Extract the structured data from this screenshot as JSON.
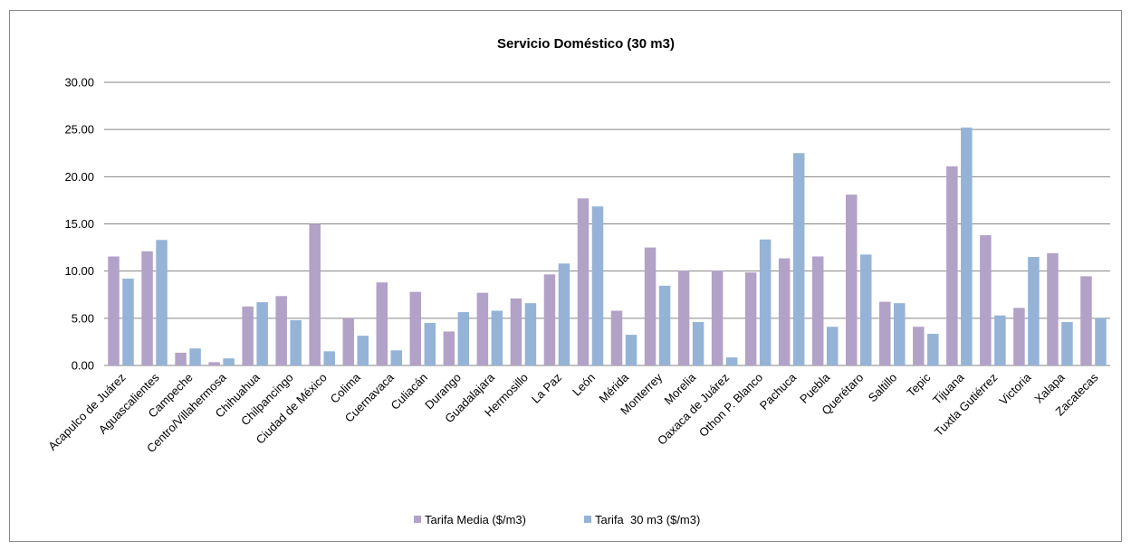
{
  "chart_data": {
    "type": "bar",
    "title": "Servicio Doméstico (30 m3)",
    "xlabel": "",
    "ylabel": "",
    "ylim": [
      0,
      30
    ],
    "yticks": [
      "0.00",
      "5.00",
      "10.00",
      "15.00",
      "20.00",
      "25.00",
      "30.00"
    ],
    "grid": true,
    "legend_position": "bottom",
    "categories": [
      "Acapulco de Juárez",
      "Aguascalientes",
      "Campeche",
      "Centro/Villahermosa",
      "Chihuahua",
      "Chilpancingo",
      "Ciudad de México",
      "Colima",
      "Cuernavaca",
      "Culiacán",
      "Durango",
      "Guadalajara",
      "Hermosillo",
      "La Paz",
      "León",
      "Mérida",
      "Monterrey",
      "Morelia",
      "Oaxaca de Juárez",
      "Othon P. Blanco",
      "Pachuca",
      "Puebla",
      "Querétaro",
      "Saltillo",
      "Tepic",
      "Tijuana",
      "Tuxtla Gutiérrez",
      "Victoria",
      "Xalapa",
      "Zacatecas"
    ],
    "series": [
      {
        "name": "Tarifa Media ($/m3)",
        "color": "#b3a2c7",
        "values": [
          11.55,
          12.1,
          1.35,
          0.35,
          6.25,
          7.35,
          15.0,
          5.0,
          8.8,
          7.8,
          3.6,
          7.7,
          7.1,
          9.65,
          17.7,
          5.8,
          12.5,
          10.05,
          10.05,
          9.85,
          11.35,
          11.55,
          18.1,
          6.75,
          4.1,
          21.1,
          13.8,
          6.1,
          11.9,
          9.45
        ]
      },
      {
        "name": "Tarifa  30 m3 ($/m3)",
        "color": "#95b3d7",
        "values": [
          9.2,
          13.3,
          1.8,
          0.75,
          6.7,
          4.8,
          1.5,
          3.15,
          1.6,
          4.5,
          5.65,
          5.8,
          6.6,
          10.8,
          16.85,
          3.25,
          8.45,
          4.6,
          0.85,
          13.35,
          22.5,
          4.1,
          11.75,
          6.6,
          3.35,
          25.2,
          5.3,
          11.5,
          4.6,
          5.0
        ]
      }
    ]
  }
}
